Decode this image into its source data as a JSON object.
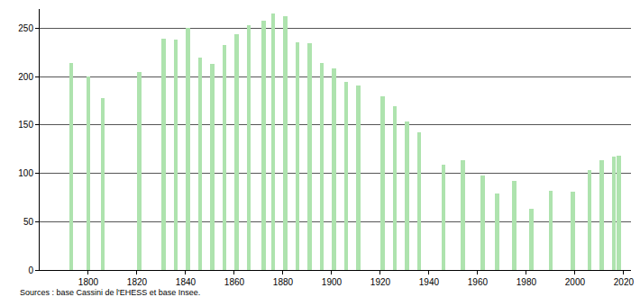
{
  "chart_data": {
    "type": "bar",
    "x": [
      1793,
      1800,
      1806,
      1821,
      1831,
      1836,
      1841,
      1846,
      1851,
      1856,
      1861,
      1866,
      1872,
      1876,
      1881,
      1886,
      1891,
      1896,
      1901,
      1906,
      1911,
      1921,
      1926,
      1931,
      1936,
      1946,
      1954,
      1962,
      1968,
      1975,
      1982,
      1990,
      1999,
      2006,
      2011,
      2016,
      2018
    ],
    "values": [
      214,
      200,
      178,
      205,
      239,
      238,
      250,
      220,
      213,
      233,
      244,
      253,
      258,
      265,
      263,
      236,
      235,
      214,
      209,
      195,
      191,
      180,
      169,
      154,
      142,
      109,
      114,
      98,
      79,
      92,
      63,
      82,
      81,
      103,
      114,
      117,
      118
    ],
    "color": "#aee3ae",
    "xlim": [
      1780,
      2023
    ],
    "xticks": [
      1800,
      1820,
      1840,
      1860,
      1880,
      1900,
      1920,
      1940,
      1960,
      1980,
      2000,
      2020
    ],
    "ylim": [
      0,
      270
    ],
    "yticks": [
      0,
      50,
      100,
      150,
      200,
      250
    ],
    "grid": true,
    "caption": "Sources : base Cassini de l'EHESS et base Insee."
  }
}
